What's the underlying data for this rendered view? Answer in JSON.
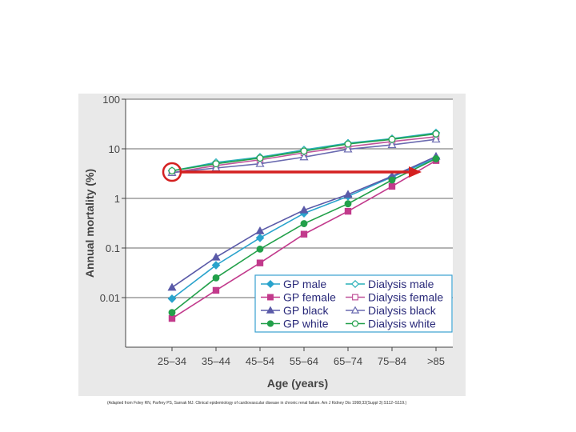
{
  "slide": {
    "citation": "(Adapted from Foley RN, Parfrey PS, Sarnak MJ. Clinical epidemiology of cardiovascular disease in chronic renal failure. Am J Kidney Dis 1998;32(Suppl 3):S112–S119.)"
  },
  "colors": {
    "gp_male": "#29a3cc",
    "gp_female": "#c23a8c",
    "gp_black": "#5a5aa8",
    "gp_white": "#22a04a",
    "dialysis_male": "#29b0b8",
    "dialysis_female": "#c0549a",
    "dialysis_black": "#6a6ab0",
    "dialysis_white": "#22a04a",
    "annotation": "#d42020",
    "axis_text": "#444444",
    "legend_border": "#3aa0d0",
    "figure_background": "#e9e9e9"
  },
  "chart_data": {
    "type": "line",
    "title": "",
    "xlabel": "Age (years)",
    "ylabel": "Annual mortality (%)",
    "y_scale": "log",
    "ylim": [
      0.001,
      100
    ],
    "yticks": [
      0.01,
      0.1,
      1,
      10,
      100
    ],
    "ytick_labels": [
      "0.01",
      "0.1",
      "1",
      "10",
      "100"
    ],
    "categories": [
      "25–34",
      "35–44",
      "45–54",
      "55–64",
      "65–74",
      "75–84",
      ">85"
    ],
    "grid": "horizontal",
    "legend_position": "bottom-right",
    "series": [
      {
        "name": "GP male",
        "marker": "diamond",
        "filled": true,
        "color_key": "gp_male",
        "values": [
          0.0095,
          0.045,
          0.16,
          0.5,
          1.1,
          2.7,
          6.5
        ]
      },
      {
        "name": "GP female",
        "marker": "square",
        "filled": true,
        "color_key": "gp_female",
        "values": [
          0.0038,
          0.014,
          0.05,
          0.19,
          0.55,
          1.75,
          5.8
        ]
      },
      {
        "name": "GP black",
        "marker": "triangle",
        "filled": true,
        "color_key": "gp_black",
        "values": [
          0.016,
          0.065,
          0.22,
          0.58,
          1.2,
          2.8,
          7.0
        ]
      },
      {
        "name": "GP white",
        "marker": "circle",
        "filled": true,
        "color_key": "gp_white",
        "values": [
          0.005,
          0.025,
          0.095,
          0.31,
          0.78,
          2.35,
          6.3
        ]
      },
      {
        "name": "Dialysis male",
        "marker": "diamond",
        "filled": false,
        "color_key": "dialysis_male",
        "values": [
          3.6,
          5.3,
          6.8,
          9.5,
          13.0,
          16.0,
          21.0
        ]
      },
      {
        "name": "Dialysis female",
        "marker": "square",
        "filled": false,
        "color_key": "dialysis_female",
        "values": [
          3.3,
          4.6,
          6.0,
          8.3,
          11.0,
          14.0,
          17.5
        ]
      },
      {
        "name": "Dialysis black",
        "marker": "triangle",
        "filled": false,
        "color_key": "dialysis_black",
        "values": [
          3.3,
          4.1,
          5.0,
          6.8,
          9.8,
          12.0,
          15.5
        ]
      },
      {
        "name": "Dialysis white",
        "marker": "circle",
        "filled": false,
        "color_key": "dialysis_white",
        "values": [
          3.6,
          5.0,
          6.5,
          9.0,
          12.5,
          15.5,
          20.0
        ]
      }
    ],
    "annotations": [
      {
        "kind": "circle",
        "category": "25–34",
        "value": 3.4
      },
      {
        "kind": "arrow",
        "from": {
          "category": "25–34",
          "value": 3.4
        },
        "to": {
          "category": ">85",
          "value": 3.4
        }
      }
    ]
  }
}
